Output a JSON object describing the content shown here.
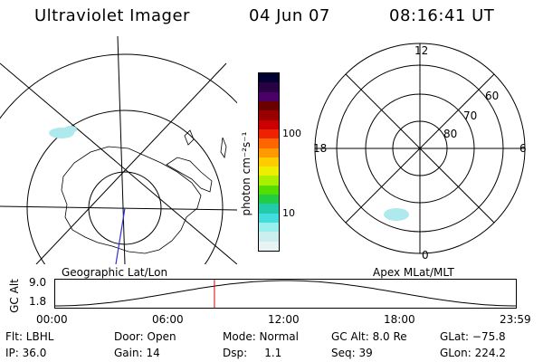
{
  "header": {
    "title": "Ultraviolet Imager",
    "date": "04 Jun 07",
    "time": "08:16:41 UT"
  },
  "colorbar": {
    "unit_label": "photon cm⁻²s⁻¹",
    "ticks": [
      "100",
      "10"
    ],
    "colors": [
      "#000033",
      "#2a0044",
      "#4a0066",
      "#6a0000",
      "#990000",
      "#cc0000",
      "#ee2200",
      "#ff6600",
      "#ff9900",
      "#ffcc00",
      "#eeee00",
      "#aaee00",
      "#55dd00",
      "#22cc44",
      "#22ccaa",
      "#44dddd",
      "#99eeee",
      "#cceeee",
      "#e8f4f4"
    ]
  },
  "left_map": {
    "caption": "Geographic Lat/Lon"
  },
  "right_map": {
    "caption": "Apex MLat/MLT",
    "hour_labels": [
      "12",
      "18",
      "6",
      "0"
    ],
    "lat_labels": [
      "60",
      "70",
      "80"
    ]
  },
  "altitude_plot": {
    "y_label": "GC Alt",
    "y_ticks": [
      "9.0",
      "1.8"
    ],
    "x_ticks": [
      "00:00",
      "06:00",
      "12:00",
      "18:00",
      "23:59"
    ],
    "current_time_fraction": 0.345
  },
  "footer": {
    "row1": [
      "Flt: LBHL",
      "Door: Open",
      "Mode: Normal",
      "GC Alt: 8.0 Re",
      "GLat: −75.8"
    ],
    "row2": [
      "IP: 36.0",
      "Gain: 14",
      "Dsp:     1.1",
      "Seq: 39",
      "GLon: 224.2"
    ]
  },
  "style": {
    "trace_color": "#000000",
    "marker_color": "#dd0000",
    "meridian_color": "#3333cc",
    "aurora_color": "#aee9ee"
  }
}
